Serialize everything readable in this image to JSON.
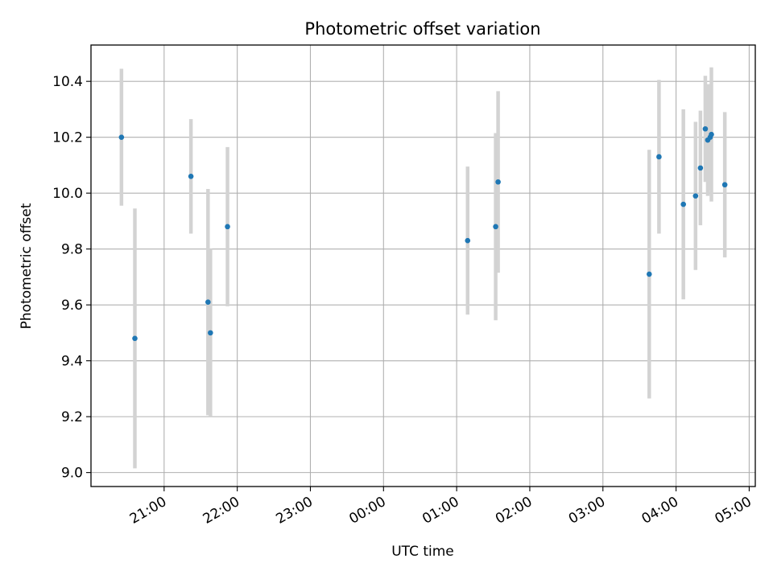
{
  "chart_data": {
    "type": "scatter",
    "title": "Photometric offset variation",
    "xlabel": "UTC time",
    "ylabel": "Photometric offset",
    "grid": true,
    "xlim": [
      "20:00",
      "05:05"
    ],
    "ylim": [
      8.95,
      10.53
    ],
    "x_ticks": [
      "21:00",
      "22:00",
      "23:00",
      "00:00",
      "01:00",
      "02:00",
      "03:00",
      "04:00",
      "05:00"
    ],
    "y_ticks": [
      "9.0",
      "9.2",
      "9.4",
      "9.6",
      "9.8",
      "10.0",
      "10.2",
      "10.4"
    ],
    "series": [
      {
        "marker_color": "#1f77b4",
        "errorbar_color": "#d3d3d3",
        "points": [
          {
            "x": "20:25",
            "y": 10.2,
            "err": 0.245
          },
          {
            "x": "20:36",
            "y": 9.48,
            "err": 0.465
          },
          {
            "x": "21:22",
            "y": 10.06,
            "err": 0.205
          },
          {
            "x": "21:36",
            "y": 9.61,
            "err": 0.405
          },
          {
            "x": "21:38",
            "y": 9.5,
            "err": 0.3
          },
          {
            "x": "21:52",
            "y": 9.88,
            "err": 0.285
          },
          {
            "x": "01:09",
            "y": 9.83,
            "err": 0.265
          },
          {
            "x": "01:32",
            "y": 9.88,
            "err": 0.335
          },
          {
            "x": "01:34",
            "y": 10.04,
            "err": 0.325
          },
          {
            "x": "03:38",
            "y": 9.71,
            "err": 0.445
          },
          {
            "x": "03:46",
            "y": 10.13,
            "err": 0.275
          },
          {
            "x": "04:06",
            "y": 9.96,
            "err": 0.34
          },
          {
            "x": "04:16",
            "y": 9.99,
            "err": 0.265
          },
          {
            "x": "04:20",
            "y": 10.09,
            "err": 0.205
          },
          {
            "x": "04:24",
            "y": 10.23,
            "err": 0.19
          },
          {
            "x": "04:26",
            "y": 10.19,
            "err": 0.2
          },
          {
            "x": "04:28",
            "y": 10.2,
            "err": 0.19
          },
          {
            "x": "04:29",
            "y": 10.21,
            "err": 0.24
          },
          {
            "x": "04:40",
            "y": 10.03,
            "err": 0.26
          }
        ]
      }
    ]
  }
}
